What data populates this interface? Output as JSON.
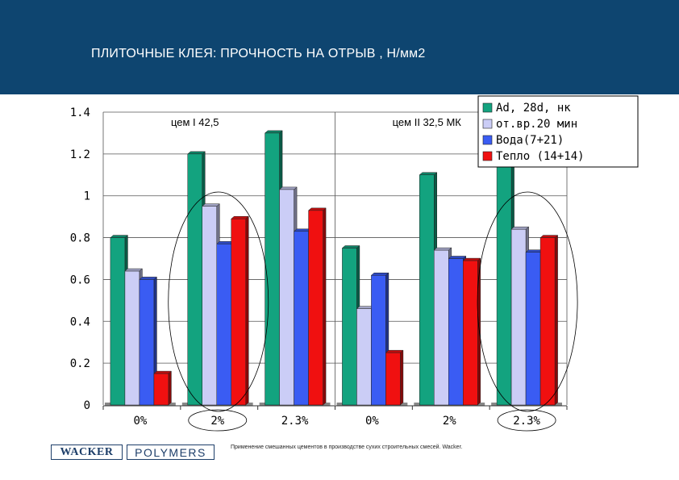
{
  "header": {
    "title": "ПЛИТОЧНЫЕ КЛЕЯ: ПРОЧНОСТЬ НА ОТРЫВ , Н/мм2"
  },
  "footer": {
    "text": "Применение смешанных цементов в производстве сухих строительных смесей. Wacker.",
    "logo_left": "WACKER",
    "logo_right": "POLYMERS"
  },
  "colors": {
    "header_bg": "#0e4570",
    "logo": "#1d3e69"
  },
  "chart_data": {
    "type": "bar",
    "categories": [
      "0%",
      "2%",
      "2.3%",
      "0%",
      "2%",
      "2.3%"
    ],
    "groups": [
      {
        "label": "цем I 42,5",
        "categories": [
          0,
          1,
          2
        ]
      },
      {
        "label": "цем II 32,5 МК",
        "categories": [
          3,
          4,
          5
        ]
      }
    ],
    "highlighted_categories": [
      1,
      5
    ],
    "series": [
      {
        "name": "Ad, 28d, нк",
        "color": "#13a37f",
        "values": [
          0.8,
          1.2,
          1.3,
          0.75,
          1.1,
          1.23
        ]
      },
      {
        "name": "от.вр.20 мин",
        "color": "#cbcdf6",
        "values": [
          0.64,
          0.95,
          1.03,
          0.46,
          0.74,
          0.84
        ]
      },
      {
        "name": "Вода(7+21)",
        "color": "#3a5cf3",
        "values": [
          0.6,
          0.77,
          0.83,
          0.62,
          0.7,
          0.73
        ]
      },
      {
        "name": "Тепло (14+14)",
        "color": "#f01010",
        "values": [
          0.15,
          0.89,
          0.93,
          0.25,
          0.69,
          0.8
        ]
      }
    ],
    "yticks": [
      "0",
      "0.2",
      "0.4",
      "0.6",
      "0.8",
      "1",
      "1.2",
      "1.4"
    ],
    "ylim": [
      0,
      1.4
    ],
    "grid": true,
    "legend_position": "top-right",
    "xlabel": "",
    "ylabel": ""
  }
}
